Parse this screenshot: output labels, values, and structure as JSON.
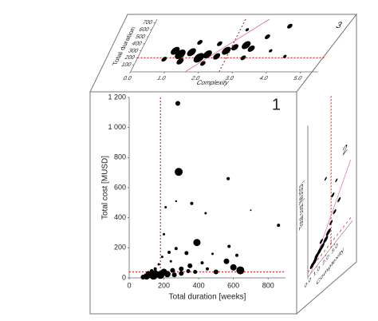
{
  "chart_data": [
    {
      "type": "scatter",
      "panel_label": "1",
      "x_label": "Total duration [weeks]",
      "y_label": "Total cost [MUSD]",
      "xlim": [
        0,
        900
      ],
      "ylim": [
        0,
        1200
      ],
      "xticks": [
        0,
        200,
        400,
        600,
        800
      ],
      "yticks": [
        0,
        200,
        400,
        600,
        800,
        {
          "value": 1000,
          "label": "1 000"
        },
        {
          "value": 1200,
          "label": "1 200"
        }
      ],
      "reference_lines": {
        "x": 180,
        "y": 40
      },
      "x": [
        280,
        285,
        570,
        360,
        210,
        440,
        270,
        700,
        860,
        390,
        575,
        270,
        200,
        230,
        190,
        330,
        480,
        560,
        600,
        640,
        420,
        350,
        300,
        250,
        200,
        150,
        120,
        100,
        80,
        140,
        180,
        220,
        260,
        300,
        340,
        380,
        450,
        500,
        620,
        150,
        170,
        240,
        130,
        110
      ],
      "values": [
        1160,
        705,
        660,
        495,
        470,
        430,
        510,
        450,
        350,
        235,
        210,
        195,
        290,
        170,
        140,
        165,
        160,
        110,
        70,
        50,
        100,
        80,
        60,
        50,
        40,
        30,
        20,
        10,
        5,
        15,
        20,
        25,
        20,
        30,
        45,
        40,
        60,
        40,
        150,
        60,
        90,
        110,
        45,
        30
      ],
      "sizes": [
        3,
        5,
        2,
        2,
        1.5,
        1.5,
        1.2,
        1,
        2,
        4.5,
        2,
        2,
        1.5,
        2,
        1.5,
        2.5,
        1.5,
        3.5,
        4,
        5,
        2,
        3,
        3,
        3,
        4,
        4,
        4,
        4,
        3,
        5,
        5,
        4,
        3,
        3,
        2.5,
        2.5,
        2,
        3,
        2,
        2,
        1.5,
        1.5,
        2.5,
        3
      ]
    },
    {
      "type": "scatter",
      "panel_label": "3",
      "x_label": "Complexity",
      "y_label": "Total duration",
      "xlim": [
        0,
        5.5
      ],
      "ylim": [
        0,
        750
      ],
      "xticks": [
        {
          "value": 0,
          "label": "0.0"
        },
        {
          "value": 1,
          "label": "1.0"
        },
        {
          "value": 2,
          "label": "2.0"
        },
        {
          "value": 3,
          "label": "3.0"
        },
        {
          "value": 4,
          "label": "4.0"
        },
        {
          "value": 5,
          "label": "5.0"
        }
      ],
      "yticks": [
        100,
        200,
        300,
        400,
        500,
        600,
        700
      ],
      "reference_lines": {
        "x": 2.6,
        "y": 200
      },
      "trend_line": {
        "x": [
          1.6,
          3.3
        ],
        "y": [
          0,
          750
        ]
      },
      "x": [
        1.0,
        1.2,
        1.5,
        1.8,
        2.0,
        2.3,
        2.5,
        2.7,
        3.0,
        3.2,
        2.2,
        1.6,
        3.5,
        4.0,
        2.8,
        1.3,
        0.8,
        3.8,
        4.3,
        2.0,
        3.1
      ],
      "values": [
        300,
        250,
        280,
        200,
        250,
        220,
        300,
        350,
        380,
        330,
        400,
        420,
        500,
        650,
        600,
        150,
        180,
        300,
        220,
        120,
        200
      ],
      "sizes": [
        5,
        6,
        5,
        6,
        5,
        4,
        5,
        4,
        5,
        4,
        3,
        3,
        3,
        3,
        2,
        4,
        3,
        2,
        2,
        3,
        3
      ]
    },
    {
      "type": "scatter",
      "panel_label": "2",
      "x_label": "Complexity",
      "y_label": "Total cost [MUSD]",
      "xlim": [
        0,
        5
      ],
      "ylim": [
        0,
        1200
      ],
      "xticks": [
        {
          "value": 0,
          "label": "0.0"
        },
        {
          "value": 1,
          "label": "1.0"
        },
        {
          "value": 2,
          "label": "2.0"
        },
        {
          "value": 3,
          "label": "3.0"
        }
      ],
      "reference_lines": {
        "x": 2.6,
        "y": 40
      },
      "trend_line": {
        "x": [
          0.3,
          4.8
        ],
        "y": [
          0,
          500
        ]
      },
      "x": [
        0.5,
        0.8,
        1.0,
        1.3,
        1.6,
        2.0,
        2.3,
        2.6,
        3.0,
        2.8,
        3.2,
        2.0,
        3.5,
        1.5
      ],
      "values": [
        50,
        60,
        80,
        90,
        100,
        120,
        150,
        200,
        250,
        400,
        480,
        600,
        300,
        150
      ],
      "sizes": [
        3,
        3,
        3,
        3,
        3,
        3,
        3,
        2,
        2,
        2,
        1.5,
        1.5,
        2,
        2
      ]
    }
  ]
}
